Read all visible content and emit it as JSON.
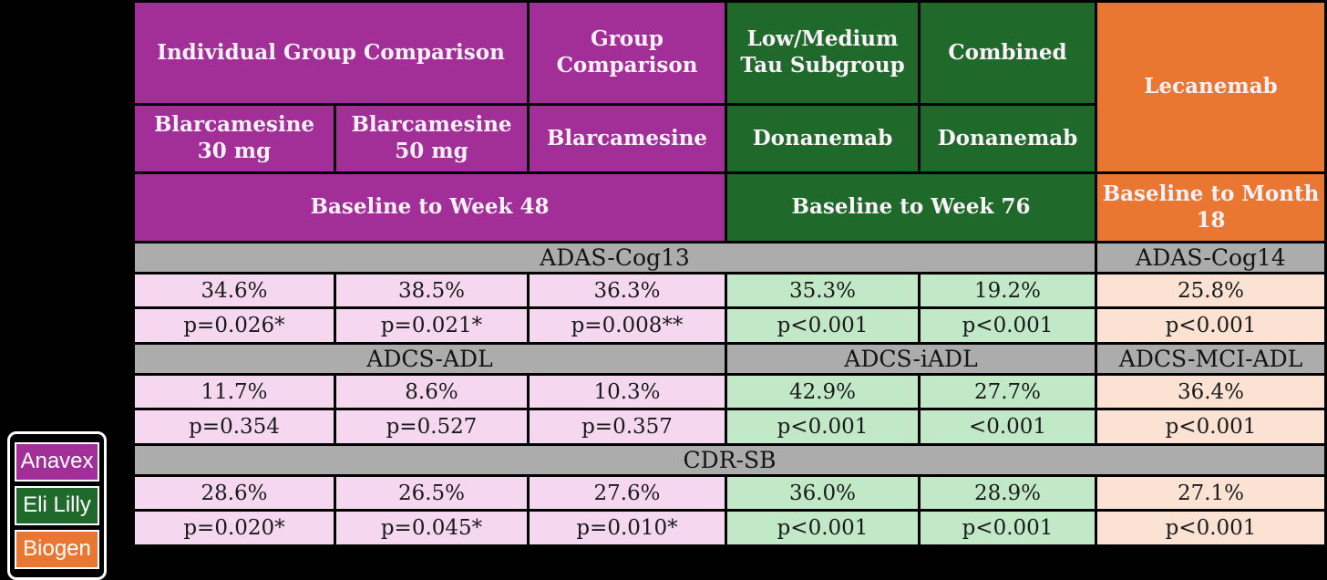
{
  "colors": {
    "anavex_purple": "#A22E98",
    "lilly_green": "#1F6A2B",
    "biogen_orange": "#E97732",
    "cell_pink": "#F5D7F0",
    "cell_light_green": "#C1E9C7",
    "cell_peach": "#FBE2D3",
    "section_gray": "#ACACAC",
    "background": "#000000"
  },
  "header": {
    "row1": [
      "Individual Group Comparison",
      "Group Comparison",
      "Low/Medium Tau Subgroup",
      "Combined",
      "Lecanemab"
    ],
    "row2": [
      "Blarcamesine 30 mg",
      "Blarcamesine 50 mg",
      "Blarcamesine",
      "Donanemab",
      "Donanemab"
    ],
    "timeframes": [
      "Baseline to Week 48",
      "Baseline to Week 76",
      "Baseline to Month 18"
    ]
  },
  "sections": [
    {
      "labels": [
        "ADAS-Cog13",
        "ADAS-Cog14"
      ],
      "values": [
        "34.6%",
        "38.5%",
        "36.3%",
        "35.3%",
        "19.2%",
        "25.8%"
      ],
      "pvalues": [
        "p=0.026*",
        "p=0.021*",
        "p=0.008**",
        "p<0.001",
        "p<0.001",
        "p<0.001"
      ]
    },
    {
      "labels": [
        "ADCS-ADL",
        "ADCS-iADL",
        "ADCS-MCI-ADL"
      ],
      "values": [
        "11.7%",
        "8.6%",
        "10.3%",
        "42.9%",
        "27.7%",
        "36.4%"
      ],
      "pvalues": [
        "p=0.354",
        "p=0.527",
        "p=0.357",
        "p<0.001",
        "<0.001",
        "p<0.001"
      ]
    },
    {
      "labels": [
        "CDR-SB"
      ],
      "values": [
        "28.6%",
        "26.5%",
        "27.6%",
        "36.0%",
        "28.9%",
        "27.1%"
      ],
      "pvalues": [
        "p=0.020*",
        "p=0.045*",
        "p=0.010*",
        "p<0.001",
        "p<0.001",
        "p<0.001"
      ]
    }
  ],
  "legend": {
    "items": [
      "Anavex",
      "Eli Lilly",
      "Biogen"
    ]
  },
  "chart_data": {
    "type": "table",
    "title": "Blarcamesine vs Donanemab vs Lecanemab clinical outcome comparison",
    "column_groups": [
      {
        "group": "Individual Group Comparison",
        "drug": "Blarcamesine 30 mg",
        "company": "Anavex",
        "timeframe": "Baseline to Week 48"
      },
      {
        "group": "Individual Group Comparison",
        "drug": "Blarcamesine 50 mg",
        "company": "Anavex",
        "timeframe": "Baseline to Week 48"
      },
      {
        "group": "Group Comparison",
        "drug": "Blarcamesine",
        "company": "Anavex",
        "timeframe": "Baseline to Week 48"
      },
      {
        "group": "Low/Medium Tau Subgroup",
        "drug": "Donanemab",
        "company": "Eli Lilly",
        "timeframe": "Baseline to Week 76"
      },
      {
        "group": "Combined",
        "drug": "Donanemab",
        "company": "Eli Lilly",
        "timeframe": "Baseline to Week 76"
      },
      {
        "group": "Lecanemab",
        "drug": "Lecanemab",
        "company": "Biogen",
        "timeframe": "Baseline to Month 18"
      }
    ],
    "rows": [
      {
        "measure_per_column_group": [
          "ADAS-Cog13 (columns 1-5)",
          "ADAS-Cog14 (column 6)"
        ],
        "values": [
          "34.6%",
          "38.5%",
          "36.3%",
          "35.3%",
          "19.2%",
          "25.8%"
        ],
        "p_values": [
          "p=0.026*",
          "p=0.021*",
          "p=0.008**",
          "p<0.001",
          "p<0.001",
          "p<0.001"
        ]
      },
      {
        "measure_per_column_group": [
          "ADCS-ADL (columns 1-3)",
          "ADCS-iADL (columns 4-5)",
          "ADCS-MCI-ADL (column 6)"
        ],
        "values": [
          "11.7%",
          "8.6%",
          "10.3%",
          "42.9%",
          "27.7%",
          "36.4%"
        ],
        "p_values": [
          "p=0.354",
          "p=0.527",
          "p=0.357",
          "p<0.001",
          "<0.001",
          "p<0.001"
        ]
      },
      {
        "measure_per_column_group": [
          "CDR-SB (all columns)"
        ],
        "values": [
          "28.6%",
          "26.5%",
          "27.6%",
          "36.0%",
          "28.9%",
          "27.1%"
        ],
        "p_values": [
          "p=0.020*",
          "p=0.045*",
          "p=0.010*",
          "p<0.001",
          "p<0.001",
          "p<0.001"
        ]
      }
    ],
    "legend_entries": [
      "Anavex",
      "Eli Lilly",
      "Biogen"
    ]
  }
}
